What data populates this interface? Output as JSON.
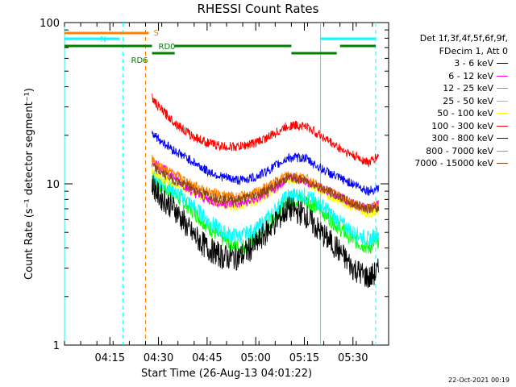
{
  "title": "RHESSI Count Rates",
  "timestamp": "22-Oct-2021 00:19",
  "legend_header": [
    "Det 1f,3f,4f,5f,6f,9f,",
    "FDecim 1, Att 0"
  ],
  "chart_data": {
    "type": "line",
    "title": "RHESSI Count Rates",
    "xlabel": "Start Time (26-Aug-13 04:01:22)",
    "ylabel": "Count Rate (s⁻¹ detector segment⁻¹)",
    "y_scale": "log",
    "ylim": [
      1,
      100
    ],
    "xlim": [
      "04:01",
      "05:41"
    ],
    "x_ticks": [
      "04:15",
      "04:30",
      "04:45",
      "05:00",
      "05:15",
      "05:30"
    ],
    "y_ticks": [
      "1",
      "10",
      "100"
    ],
    "x": [
      "04:28",
      "04:30",
      "04:35",
      "04:40",
      "04:45",
      "04:50",
      "04:55",
      "05:00",
      "05:05",
      "05:10",
      "05:15",
      "05:20",
      "05:25",
      "05:30",
      "05:35",
      "05:38"
    ],
    "series": [
      {
        "name": "3 - 6 keV",
        "color": "#000000",
        "values": [
          10,
          8.5,
          7,
          5,
          4,
          3.5,
          3.5,
          4.2,
          5.5,
          7,
          6.5,
          5,
          4,
          3,
          2.6,
          2.9
        ]
      },
      {
        "name": "6 - 12 keV",
        "color": "#ff00ff",
        "values": [
          14,
          13,
          11,
          9,
          8,
          7.5,
          7.5,
          8,
          9,
          11,
          10.5,
          9.5,
          8.5,
          7.5,
          7,
          7.5
        ]
      },
      {
        "name": "12 - 25 keV",
        "color": "#00ff00",
        "values": [
          11,
          10,
          8.5,
          7,
          5.5,
          4.5,
          4,
          4.5,
          6,
          8,
          8,
          7,
          5.5,
          4.5,
          4,
          4.5
        ]
      },
      {
        "name": "25 - 50 keV",
        "color": "#00ffff",
        "values": [
          11.5,
          10.5,
          9,
          7.5,
          6,
          5,
          4.7,
          5.2,
          6.5,
          8.5,
          8.5,
          7.5,
          6,
          5,
          4.5,
          5
        ]
      },
      {
        "name": "50 - 100 keV",
        "color": "#ffff00",
        "values": [
          12,
          11,
          10,
          9,
          8,
          7.5,
          7.2,
          7.8,
          9,
          10.5,
          10.5,
          9,
          8,
          7.2,
          6.5,
          7
        ]
      },
      {
        "name": "100 - 300 keV",
        "color": "#ff0000",
        "values": [
          34,
          30,
          24,
          20,
          18,
          17,
          17,
          18,
          20,
          23,
          23,
          20,
          17,
          15,
          13.5,
          15
        ]
      },
      {
        "name": "300 - 800 keV",
        "color": "#0000ff",
        "values": [
          21,
          19,
          16,
          14,
          12,
          11,
          10.5,
          11,
          12.5,
          14.5,
          14.5,
          12.5,
          11,
          10,
          9,
          9.5
        ]
      },
      {
        "name": "800 - 7000 keV",
        "color": "#ff8000",
        "values": [
          14.5,
          13,
          11.5,
          10,
          9,
          8.5,
          8.3,
          8.8,
          10,
          11.5,
          11,
          9.5,
          8.5,
          7.5,
          7,
          7.5
        ]
      },
      {
        "name": "7000 - 15000 keV",
        "color": "#8b4513",
        "values": [
          13,
          12,
          10.5,
          9.5,
          8.5,
          8,
          8,
          8.5,
          9.5,
          11,
          10.5,
          9.5,
          8.5,
          7.5,
          7,
          7
        ]
      }
    ],
    "vlines": [
      {
        "x": "04:01",
        "color": "#00ffff",
        "style": "solid"
      },
      {
        "x": "04:19",
        "color": "#00ffff",
        "style": "dashed"
      },
      {
        "x": "04:26",
        "color": "#ff8000",
        "style": "dashed"
      },
      {
        "x": "05:20",
        "color": "#00ffff",
        "style": "solid"
      },
      {
        "x": "05:37",
        "color": "#00ffff",
        "style": "dashed"
      }
    ],
    "segments": [
      {
        "label": "S",
        "color": "#ff8000",
        "spans": [
          [
            "04:01",
            "04:27"
          ]
        ]
      },
      {
        "label": "N",
        "color": "#00ffff",
        "spans": [
          [
            "04:01",
            "04:18"
          ],
          [
            "05:20",
            "05:37"
          ]
        ]
      },
      {
        "label": "RD0",
        "color": "#008000",
        "spans": [
          [
            "04:01",
            "04:28"
          ],
          [
            "04:35",
            "05:11"
          ],
          [
            "05:26",
            "05:37"
          ]
        ]
      },
      {
        "label": "RD6",
        "color": "#008000",
        "spans": [
          [
            "04:28",
            "04:35"
          ],
          [
            "05:11",
            "05:25"
          ]
        ]
      }
    ]
  }
}
